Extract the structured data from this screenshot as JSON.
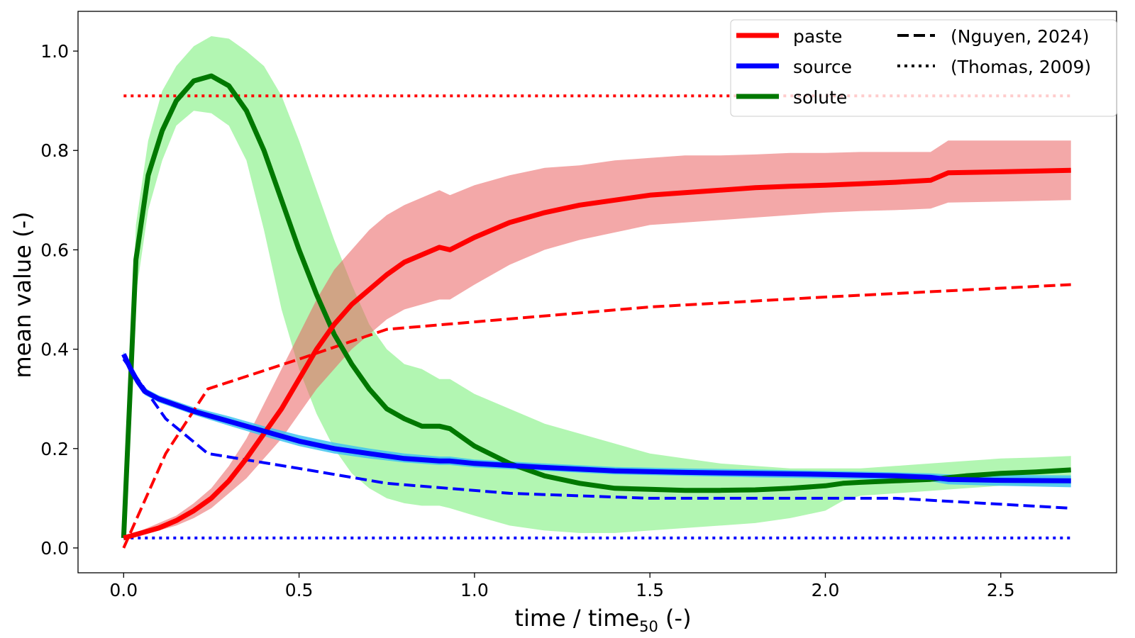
{
  "chart_data": {
    "type": "line",
    "xlabel_main": "time / time",
    "xlabel_sub": "50",
    "xlabel_tail": " (-)",
    "ylabel": "mean value (-)",
    "xlim": [
      -0.13,
      2.83
    ],
    "ylim": [
      -0.05,
      1.08
    ],
    "xticks": [
      0.0,
      0.5,
      1.0,
      1.5,
      2.0,
      2.5
    ],
    "xtick_labels": [
      "0.0",
      "0.5",
      "1.0",
      "1.5",
      "2.0",
      "2.5"
    ],
    "yticks": [
      0.0,
      0.2,
      0.4,
      0.6,
      0.8,
      1.0
    ],
    "ytick_labels": [
      "0.0",
      "0.2",
      "0.4",
      "0.6",
      "0.8",
      "1.0"
    ],
    "legend": {
      "position": "top-right",
      "entries": [
        {
          "label": "paste",
          "color": "#ff0000",
          "style": "solid"
        },
        {
          "label": "source",
          "color": "#0000ff",
          "style": "solid"
        },
        {
          "label": "solute",
          "color": "#007800",
          "style": "solid"
        },
        {
          "label": "(Nguyen, 2024)",
          "color": "#000000",
          "style": "dashed"
        },
        {
          "label": "(Thomas, 2009)",
          "color": "#000000",
          "style": "dotted"
        }
      ]
    },
    "series": [
      {
        "name": "solute",
        "color": "#007800",
        "band_color": "#7ef07e",
        "x": [
          0.0,
          0.035,
          0.07,
          0.11,
          0.15,
          0.2,
          0.25,
          0.3,
          0.35,
          0.4,
          0.45,
          0.5,
          0.55,
          0.6,
          0.65,
          0.7,
          0.75,
          0.8,
          0.85,
          0.9,
          0.93,
          1.0,
          1.1,
          1.2,
          1.3,
          1.4,
          1.5,
          1.6,
          1.7,
          1.8,
          1.9,
          2.0,
          2.05,
          2.1,
          2.2,
          2.3,
          2.4,
          2.5,
          2.6,
          2.7
        ],
        "y": [
          0.02,
          0.58,
          0.75,
          0.84,
          0.9,
          0.94,
          0.95,
          0.93,
          0.88,
          0.8,
          0.7,
          0.6,
          0.51,
          0.43,
          0.37,
          0.32,
          0.28,
          0.26,
          0.245,
          0.245,
          0.24,
          0.205,
          0.17,
          0.145,
          0.13,
          0.12,
          0.118,
          0.116,
          0.116,
          0.117,
          0.12,
          0.125,
          0.13,
          0.132,
          0.135,
          0.138,
          0.145,
          0.15,
          0.153,
          0.157
        ],
        "upper": [
          0.04,
          0.65,
          0.82,
          0.92,
          0.97,
          1.01,
          1.03,
          1.025,
          1.0,
          0.97,
          0.91,
          0.82,
          0.72,
          0.62,
          0.53,
          0.45,
          0.4,
          0.37,
          0.36,
          0.34,
          0.34,
          0.31,
          0.28,
          0.25,
          0.23,
          0.21,
          0.19,
          0.18,
          0.17,
          0.165,
          0.16,
          0.16,
          0.16,
          0.16,
          0.165,
          0.17,
          0.175,
          0.18,
          0.182,
          0.185
        ],
        "lower": [
          0.0,
          0.51,
          0.68,
          0.78,
          0.85,
          0.88,
          0.875,
          0.85,
          0.78,
          0.64,
          0.48,
          0.36,
          0.27,
          0.2,
          0.15,
          0.12,
          0.1,
          0.09,
          0.085,
          0.085,
          0.08,
          0.065,
          0.045,
          0.035,
          0.03,
          0.03,
          0.035,
          0.04,
          0.045,
          0.05,
          0.06,
          0.075,
          0.095,
          0.105,
          0.11,
          0.115,
          0.12,
          0.125,
          0.126,
          0.128
        ]
      },
      {
        "name": "paste",
        "color": "#ff0000",
        "band_color": "#e96060",
        "x": [
          0.0,
          0.05,
          0.1,
          0.15,
          0.2,
          0.25,
          0.3,
          0.35,
          0.4,
          0.45,
          0.5,
          0.55,
          0.6,
          0.65,
          0.7,
          0.75,
          0.8,
          0.85,
          0.9,
          0.93,
          1.0,
          1.1,
          1.2,
          1.3,
          1.4,
          1.5,
          1.6,
          1.7,
          1.8,
          1.9,
          2.0,
          2.1,
          2.2,
          2.3,
          2.35,
          2.5,
          2.7
        ],
        "y": [
          0.02,
          0.03,
          0.04,
          0.055,
          0.075,
          0.1,
          0.135,
          0.18,
          0.23,
          0.28,
          0.34,
          0.4,
          0.45,
          0.49,
          0.52,
          0.55,
          0.575,
          0.59,
          0.605,
          0.6,
          0.625,
          0.655,
          0.675,
          0.69,
          0.7,
          0.71,
          0.715,
          0.72,
          0.725,
          0.728,
          0.73,
          0.733,
          0.736,
          0.74,
          0.755,
          0.757,
          0.76
        ],
        "upper": [
          0.025,
          0.035,
          0.05,
          0.065,
          0.09,
          0.12,
          0.165,
          0.22,
          0.29,
          0.36,
          0.43,
          0.5,
          0.56,
          0.6,
          0.64,
          0.67,
          0.69,
          0.705,
          0.72,
          0.71,
          0.73,
          0.75,
          0.765,
          0.77,
          0.78,
          0.785,
          0.79,
          0.79,
          0.792,
          0.795,
          0.795,
          0.797,
          0.797,
          0.797,
          0.82,
          0.82,
          0.82
        ],
        "lower": [
          0.015,
          0.025,
          0.035,
          0.045,
          0.06,
          0.08,
          0.11,
          0.14,
          0.18,
          0.22,
          0.27,
          0.32,
          0.36,
          0.4,
          0.43,
          0.46,
          0.48,
          0.49,
          0.5,
          0.5,
          0.53,
          0.57,
          0.6,
          0.62,
          0.635,
          0.65,
          0.655,
          0.66,
          0.665,
          0.67,
          0.675,
          0.678,
          0.68,
          0.683,
          0.695,
          0.697,
          0.7
        ]
      },
      {
        "name": "source",
        "color": "#0000ff",
        "band_color": "#3fc3f0",
        "x": [
          0.0,
          0.02,
          0.04,
          0.06,
          0.1,
          0.2,
          0.3,
          0.4,
          0.5,
          0.6,
          0.7,
          0.8,
          0.9,
          0.93,
          1.0,
          1.2,
          1.4,
          1.6,
          1.8,
          2.0,
          2.2,
          2.3,
          2.35,
          2.5,
          2.7
        ],
        "y": [
          0.39,
          0.36,
          0.335,
          0.315,
          0.3,
          0.275,
          0.255,
          0.235,
          0.215,
          0.2,
          0.19,
          0.18,
          0.175,
          0.175,
          0.17,
          0.162,
          0.155,
          0.152,
          0.15,
          0.148,
          0.145,
          0.142,
          0.138,
          0.136,
          0.135
        ],
        "upper": [
          0.395,
          0.365,
          0.34,
          0.322,
          0.307,
          0.283,
          0.265,
          0.245,
          0.227,
          0.212,
          0.2,
          0.19,
          0.184,
          0.184,
          0.178,
          0.17,
          0.163,
          0.16,
          0.158,
          0.155,
          0.152,
          0.15,
          0.148,
          0.147,
          0.146
        ],
        "lower": [
          0.385,
          0.355,
          0.33,
          0.308,
          0.293,
          0.268,
          0.246,
          0.225,
          0.205,
          0.19,
          0.18,
          0.172,
          0.167,
          0.167,
          0.162,
          0.155,
          0.148,
          0.145,
          0.142,
          0.14,
          0.137,
          0.134,
          0.128,
          0.125,
          0.122
        ]
      }
    ],
    "reference": [
      {
        "name": "paste (Nguyen, 2024)",
        "color": "#ff0000",
        "style": "dashed",
        "x": [
          0.0,
          0.12,
          0.24,
          0.5,
          0.75,
          1.0,
          1.5,
          2.0,
          2.7
        ],
        "y": [
          0.0,
          0.19,
          0.32,
          0.38,
          0.44,
          0.455,
          0.485,
          0.505,
          0.53
        ]
      },
      {
        "name": "source (Nguyen, 2024)",
        "color": "#0000ff",
        "style": "dashed",
        "x": [
          0.0,
          0.12,
          0.24,
          0.5,
          0.75,
          1.1,
          1.5,
          2.0,
          2.2,
          2.7
        ],
        "y": [
          0.38,
          0.26,
          0.19,
          0.16,
          0.13,
          0.11,
          0.1,
          0.1,
          0.1,
          0.08
        ]
      },
      {
        "name": "paste (Thomas, 2009)",
        "color": "#ff0000",
        "style": "dotted",
        "x": [
          0.0,
          2.7
        ],
        "y": [
          0.91,
          0.91
        ]
      },
      {
        "name": "source (Thomas, 2009)",
        "color": "#0000ff",
        "style": "dotted",
        "x": [
          0.0,
          2.7
        ],
        "y": [
          0.02,
          0.02
        ]
      }
    ]
  }
}
